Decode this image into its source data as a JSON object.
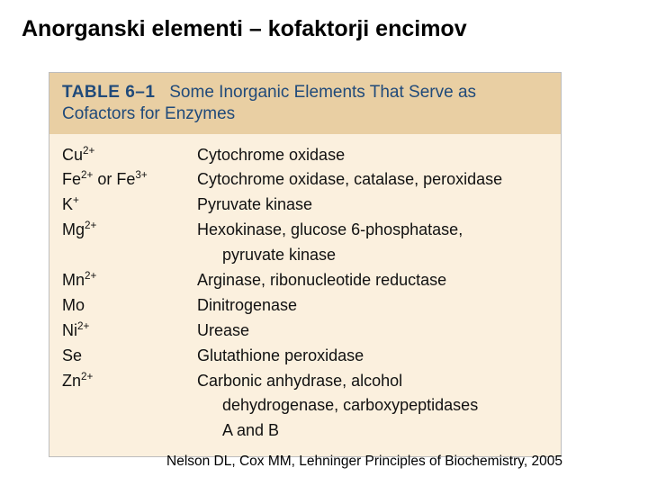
{
  "title": "Anorganski elementi – kofaktorji encimov",
  "table": {
    "label": "TABLE 6–1",
    "header": "Some Inorganic Elements That Serve as Cofactors for Enzymes",
    "header_bg": "#e9cfa3",
    "header_color": "#204a7a",
    "body_bg": "#fbf0de",
    "rows": [
      {
        "ion_html": "Cu<sup>2+</sup>",
        "enzymes": [
          "Cytochrome oxidase"
        ]
      },
      {
        "ion_html": "Fe<sup>2+</sup> or Fe<sup>3+</sup>",
        "enzymes": [
          "Cytochrome oxidase, catalase, peroxidase"
        ]
      },
      {
        "ion_html": "K<sup>+</sup>",
        "enzymes": [
          "Pyruvate kinase"
        ]
      },
      {
        "ion_html": "Mg<sup>2+</sup>",
        "enzymes": [
          "Hexokinase, glucose 6-phosphatase,",
          "pyruvate kinase"
        ]
      },
      {
        "ion_html": "Mn<sup>2+</sup>",
        "enzymes": [
          "Arginase, ribonucleotide reductase"
        ]
      },
      {
        "ion_html": "Mo",
        "enzymes": [
          "Dinitrogenase"
        ]
      },
      {
        "ion_html": "Ni<sup>2+</sup>",
        "enzymes": [
          "Urease"
        ]
      },
      {
        "ion_html": "Se",
        "enzymes": [
          "Glutathione peroxidase"
        ]
      },
      {
        "ion_html": "Zn<sup>2+</sup>",
        "enzymes": [
          "Carbonic anhydrase, alcohol",
          "dehydrogenase, carboxypeptidases",
          "A and B"
        ]
      }
    ]
  },
  "citation": "Nelson DL, Cox MM, Lehninger Principles of Biochemistry, 2005"
}
